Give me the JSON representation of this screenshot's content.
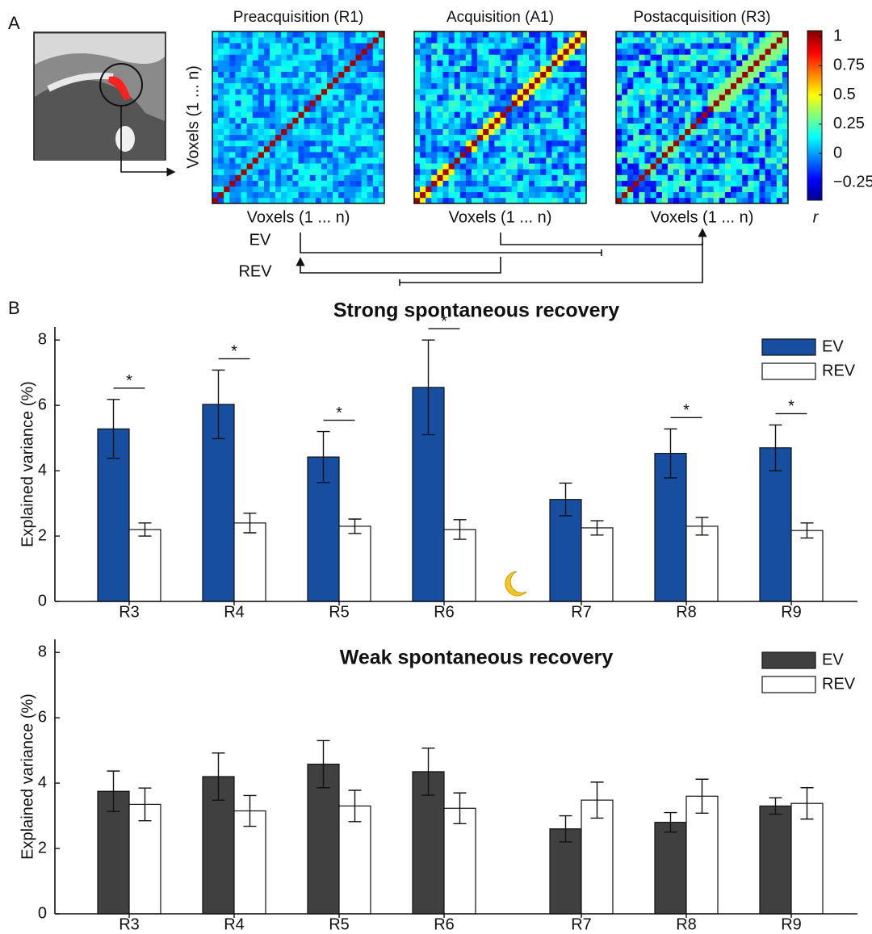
{
  "panel_a": {
    "label": "A",
    "matrices": [
      {
        "title": "Preacquisition (R1)"
      },
      {
        "title": "Acquisition (A1)"
      },
      {
        "title": "Postacquisition (R3)"
      }
    ],
    "y_label": "Voxels (1 ... n)",
    "x_label": "Voxels (1 ... n)",
    "colorbar": {
      "label": "r",
      "lim": [
        -0.4,
        1.05
      ],
      "ticks": [
        1,
        0.75,
        0.5,
        0.25,
        0,
        {
          "value": -0.25,
          "label": "−0.25"
        }
      ]
    },
    "links": {
      "ev": "EV",
      "rev": "REV"
    }
  },
  "panel_b": {
    "label": "B"
  },
  "chart_data": [
    {
      "type": "bar",
      "title": "Strong spontaneous recovery",
      "y_label": "Explained variance (%)",
      "categories": [
        "R3",
        "R4",
        "R5",
        "R6",
        "R7",
        "R8",
        "R9"
      ],
      "ylim": [
        0,
        8.4
      ],
      "yticks": [
        0,
        2,
        4,
        6,
        8
      ],
      "legend": "upper right",
      "series": [
        {
          "name": "EV",
          "color": "#174ea0",
          "values": [
            5.28,
            6.03,
            4.42,
            6.55,
            3.12,
            4.53,
            4.7
          ],
          "errors": [
            0.9,
            1.05,
            0.78,
            1.45,
            0.5,
            0.75,
            0.7
          ]
        },
        {
          "name": "REV",
          "color": "#ffffff",
          "values": [
            2.2,
            2.4,
            2.3,
            2.2,
            2.25,
            2.3,
            2.17
          ],
          "errors": [
            0.2,
            0.3,
            0.22,
            0.3,
            0.22,
            0.27,
            0.23
          ]
        }
      ],
      "significance": [
        "*",
        "*",
        "*",
        "*",
        null,
        "*",
        "*"
      ]
    },
    {
      "type": "bar",
      "title": "Weak spontaneous recovery",
      "y_label": "Explained variance (%)",
      "categories": [
        "R3",
        "R4",
        "R5",
        "R6",
        "R7",
        "R8",
        "R9"
      ],
      "ylim": [
        0,
        8.4
      ],
      "yticks": [
        0,
        2,
        4,
        6,
        8
      ],
      "legend": "upper right",
      "series": [
        {
          "name": "EV",
          "color": "#404040",
          "values": [
            3.75,
            4.2,
            4.58,
            4.35,
            2.6,
            2.8,
            3.3
          ],
          "errors": [
            0.62,
            0.72,
            0.72,
            0.72,
            0.4,
            0.3,
            0.25
          ]
        },
        {
          "name": "REV",
          "color": "#ffffff",
          "values": [
            3.35,
            3.15,
            3.3,
            3.23,
            3.48,
            3.6,
            3.38
          ],
          "errors": [
            0.5,
            0.47,
            0.48,
            0.47,
            0.55,
            0.52,
            0.48
          ]
        }
      ]
    }
  ]
}
